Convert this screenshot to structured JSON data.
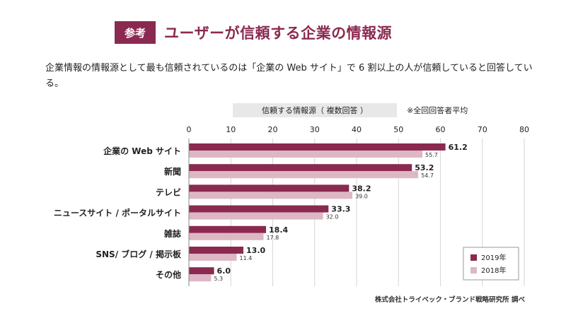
{
  "header": {
    "badge": "参考",
    "title": "ユーザーが信頼する企業の情報源"
  },
  "description": "企業情報の情報源として最も信頼されているのは「企業の Web サイト」で 6 割以上の人が信頼していると回答している。",
  "chart_header": {
    "label": "信頼する情報源（ 複数回答 ）",
    "note": "※全回回答者平均"
  },
  "source": "株式会社トライベック・ブランド戦略研究所 調べ",
  "colors": {
    "accent": "#8b2a50",
    "series_2019": "#8b2a50",
    "series_2018": "#ddb7c4",
    "grid": "#d6d6d6"
  },
  "chart_data": {
    "type": "bar",
    "orientation": "horizontal",
    "categories": [
      "企業の Web サイト",
      "新聞",
      "テレビ",
      "ニュースサイト / ポータルサイト",
      "雑誌",
      "SNS/ ブログ / 掲示板",
      "その他"
    ],
    "series": [
      {
        "name": "2019年",
        "values": [
          61.2,
          53.2,
          38.2,
          33.3,
          18.4,
          13.0,
          6.0
        ]
      },
      {
        "name": "2018年",
        "values": [
          55.7,
          54.7,
          39.0,
          32.0,
          17.8,
          11.4,
          5.3
        ]
      }
    ],
    "xlim": [
      0,
      80
    ],
    "ticks": [
      0,
      10,
      20,
      30,
      40,
      50,
      60,
      70,
      80
    ],
    "grid": true,
    "legend_position": "bottom-right"
  }
}
